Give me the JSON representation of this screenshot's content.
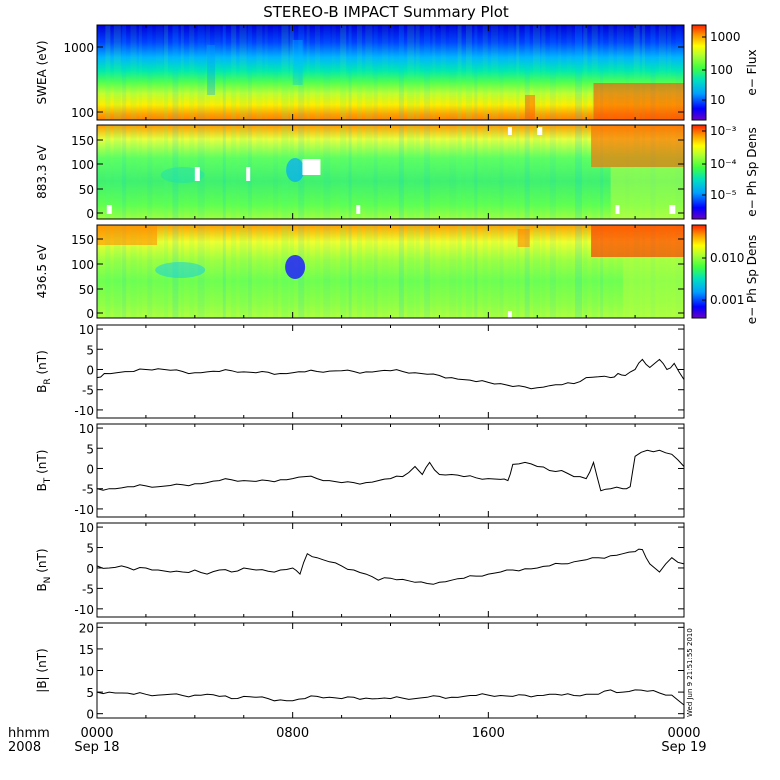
{
  "chart_data": {
    "title": "STEREO-B IMPACT Summary Plot",
    "type": "line",
    "time_axis": {
      "ticks": [
        {
          "hhmm": "0000",
          "date": "Sep 18"
        },
        {
          "hhmm": "0800",
          "date": ""
        },
        {
          "hhmm": "1600",
          "date": ""
        },
        {
          "hhmm": "0000",
          "date": "Sep 19"
        }
      ],
      "row_label": "hhmm",
      "year_label": "2008",
      "range_hours": [
        0,
        24
      ]
    },
    "spectrograms": [
      {
        "ylabel": "SWEA (eV)",
        "yscale": "log",
        "ylim": [
          90,
          2200
        ],
        "yticks": [
          "1000",
          "100"
        ],
        "colorbar_label": "e− Flux",
        "colorbar_ticks": [
          "1000",
          "100",
          "10"
        ]
      },
      {
        "ylabel": "883.3 eV",
        "yscale": "linear",
        "ylim": [
          -5,
          180
        ],
        "yticks": [
          "150",
          "100",
          "50",
          "0"
        ],
        "colorbar_label": "e− Ph Sp Dens",
        "colorbar_ticks": [
          "10⁻³",
          "10⁻⁴",
          "10⁻⁵"
        ]
      },
      {
        "ylabel": "436.5 eV",
        "yscale": "linear",
        "ylim": [
          -5,
          180
        ],
        "yticks": [
          "150",
          "100",
          "50",
          "0"
        ],
        "colorbar_label": "e− Ph Sp Dens",
        "colorbar_ticks": [
          "0.010",
          "0.001"
        ]
      }
    ],
    "line_panels": [
      {
        "ylabel": "B",
        "ylabel_sub": "R",
        "unit": "(nT)",
        "ylim": [
          -12,
          11
        ],
        "yticks": [
          "10",
          "5",
          "0",
          "-5",
          "-10"
        ],
        "x": [
          0,
          0.3,
          0.8,
          1.5,
          2,
          2.5,
          3,
          3.5,
          4,
          4.5,
          5,
          5.5,
          6,
          6.5,
          7,
          7.5,
          8,
          8.5,
          9,
          9.5,
          10,
          10.5,
          11,
          11.5,
          12,
          12.5,
          13,
          13.5,
          14,
          14.5,
          15,
          15.5,
          16,
          16.5,
          17,
          17.5,
          18,
          18.5,
          19,
          19.5,
          20,
          20.5,
          21,
          21.3,
          21.6,
          22,
          22.3,
          22.6,
          23,
          23.3,
          23.6,
          24
        ],
        "y": [
          -2,
          -1,
          -0.8,
          -0.5,
          0,
          0.2,
          -0.2,
          -0.5,
          -0.8,
          -0.6,
          -0.5,
          -0.3,
          -0.6,
          -0.8,
          -0.7,
          -1,
          -0.8,
          -0.6,
          -0.5,
          -0.4,
          -0.3,
          -0.5,
          -0.6,
          -0.4,
          -0.3,
          -0.5,
          -0.8,
          -1.2,
          -1.5,
          -2,
          -2.5,
          -3,
          -3.2,
          -3.5,
          -4.2,
          -4.3,
          -4.5,
          -4,
          -3.8,
          -3.5,
          -2,
          -1.8,
          -2,
          -1,
          -1.5,
          0,
          2.5,
          0.5,
          2.5,
          0,
          1.5,
          -2.5
        ]
      },
      {
        "ylabel": "B",
        "ylabel_sub": "T",
        "unit": "(nT)",
        "ylim": [
          -12,
          11
        ],
        "yticks": [
          "10",
          "5",
          "0",
          "-5",
          "-10"
        ],
        "x": [
          0,
          0.5,
          1,
          1.5,
          2,
          2.5,
          3,
          3.5,
          4,
          4.5,
          5,
          5.5,
          6,
          6.5,
          7,
          7.5,
          8,
          8.5,
          9,
          9.5,
          10,
          10.5,
          11,
          11.5,
          12,
          12.5,
          13,
          13.3,
          13.6,
          14,
          14.5,
          15,
          15.5,
          16,
          16.5,
          16.8,
          17,
          17.5,
          18,
          18.5,
          19,
          19.5,
          20,
          20.3,
          20.6,
          21,
          21.5,
          21.8,
          22,
          22.5,
          23,
          23.5,
          24
        ],
        "y": [
          -5,
          -5,
          -4.8,
          -4.5,
          -4.3,
          -4.5,
          -4.2,
          -4,
          -3.8,
          -3.5,
          -3,
          -2.8,
          -3,
          -3.2,
          -3,
          -2.8,
          -2.5,
          -2,
          -2.5,
          -3,
          -3.5,
          -3.5,
          -3.5,
          -3,
          -2.5,
          -2,
          0.5,
          -1.5,
          1.5,
          -1.5,
          -1.5,
          -2,
          -2.3,
          -2.5,
          -2.7,
          -3,
          1,
          1.5,
          0.5,
          -0.5,
          -0.5,
          -2,
          -2.5,
          1.5,
          -5.5,
          -5,
          -5,
          -4.5,
          3,
          4.5,
          4.5,
          3.5,
          0.5
        ]
      },
      {
        "ylabel": "B",
        "ylabel_sub": "N",
        "unit": "(nT)",
        "ylim": [
          -12,
          11
        ],
        "yticks": [
          "10",
          "5",
          "0",
          "-5",
          "-10"
        ],
        "x": [
          0,
          0.5,
          1,
          1.5,
          2,
          2.5,
          3,
          3.5,
          4,
          4.5,
          5,
          5.5,
          6,
          6.5,
          7,
          7.5,
          8,
          8.3,
          8.6,
          9,
          9.5,
          10,
          10.5,
          11,
          11.5,
          12,
          12.5,
          13,
          13.5,
          14,
          14.5,
          15,
          15.5,
          16,
          16.5,
          17,
          17.5,
          18,
          18.5,
          19,
          19.5,
          20,
          20.5,
          21,
          21.5,
          22,
          22.3,
          22.6,
          23,
          23.5,
          24
        ],
        "y": [
          0.5,
          0,
          0.5,
          -0.5,
          0,
          -0.5,
          -1,
          -1,
          -0.5,
          -1.5,
          -0.5,
          -1,
          0,
          -0.5,
          -0.8,
          -0.5,
          0,
          -1.5,
          3.5,
          2.5,
          1.5,
          0.5,
          -0.5,
          -1.5,
          -3,
          -2.5,
          -2.8,
          -3.5,
          -3.8,
          -3.5,
          -3,
          -2.5,
          -2,
          -1.5,
          -1,
          -0.5,
          -0.2,
          0,
          0.5,
          1,
          1.5,
          2,
          2.5,
          3,
          3.5,
          4,
          4.5,
          1,
          -1,
          2.5,
          1
        ]
      },
      {
        "ylabel": "|B|",
        "ylabel_sub": "",
        "unit": "(nT)",
        "ylim": [
          -1,
          21
        ],
        "yticks": [
          "20",
          "15",
          "10",
          "5",
          "0"
        ],
        "x": [
          0,
          0.5,
          1,
          1.5,
          2,
          2.5,
          3,
          3.5,
          4,
          4.5,
          5,
          5.5,
          6,
          6.5,
          7,
          7.5,
          8,
          8.5,
          9,
          9.5,
          10,
          10.5,
          11,
          11.5,
          12,
          12.5,
          13,
          13.5,
          14,
          14.5,
          15,
          15.5,
          16,
          16.5,
          17,
          17.5,
          18,
          18.5,
          19,
          19.5,
          20,
          20.5,
          21,
          21.5,
          22,
          22.5,
          23,
          23.5,
          24
        ],
        "y": [
          5,
          5,
          4.8,
          4.5,
          4.5,
          4.3,
          4.5,
          4.2,
          4.3,
          4.5,
          4,
          3.5,
          4,
          3.8,
          3.5,
          3.2,
          3,
          3.5,
          4,
          3.8,
          3.5,
          3.8,
          3.6,
          3.5,
          3.5,
          3.6,
          3.5,
          3.8,
          4,
          3.8,
          4,
          4.2,
          4.3,
          4.2,
          4,
          4.3,
          4.2,
          4.5,
          4.3,
          4.2,
          4.5,
          4.5,
          5.5,
          5,
          5.5,
          5.2,
          4.8,
          4.3,
          2
        ]
      }
    ],
    "side_stamp": "Wed Jun  9 21:51:55 2010"
  },
  "colors": {
    "line": "#000000",
    "colormap": [
      "#6a00c8",
      "#0000ff",
      "#00a0ff",
      "#00e0c0",
      "#40ff40",
      "#b0ff30",
      "#ffff00",
      "#ff9000",
      "#ff2000"
    ]
  }
}
